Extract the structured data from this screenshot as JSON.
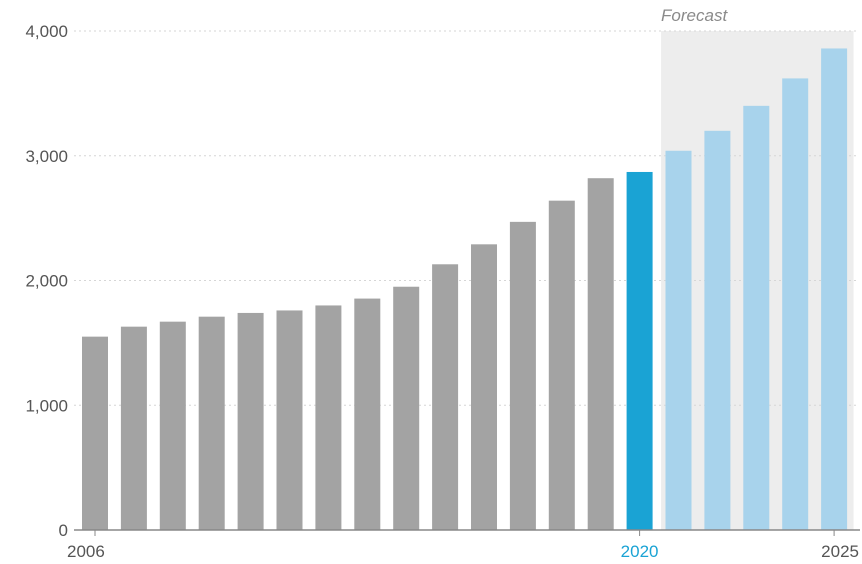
{
  "chart_data": {
    "type": "bar",
    "title": "",
    "xlabel": "",
    "ylabel": "",
    "x": [
      2006,
      2007,
      2008,
      2009,
      2010,
      2011,
      2012,
      2013,
      2014,
      2015,
      2016,
      2017,
      2018,
      2019,
      2020,
      2021,
      2022,
      2023,
      2024,
      2025
    ],
    "values": [
      1550,
      1630,
      1670,
      1710,
      1740,
      1760,
      1800,
      1855,
      1950,
      2130,
      2290,
      2470,
      2640,
      2820,
      2870,
      3040,
      3200,
      3400,
      3620,
      3860
    ],
    "ylim": [
      0,
      4000
    ],
    "yticks": [
      0,
      1000,
      2000,
      3000,
      4000
    ],
    "ytick_labels": [
      "0",
      "1,000",
      "2,000",
      "3,000",
      "4,000"
    ],
    "xtick_labels": [
      {
        "year": 2006,
        "label": "2006"
      },
      {
        "year": 2020,
        "label": "2020"
      },
      {
        "year": 2025,
        "label": "2025"
      }
    ],
    "highlight_year": 2020,
    "forecast": {
      "label": "Forecast",
      "from_year": 2021,
      "to_year": 2025
    },
    "grid": true,
    "colors": {
      "historical": "#a3a3a3",
      "highlight": "#1aa3d4",
      "forecast": "#a8d3ec",
      "forecast_region": "#ededed",
      "highlight_label": "#1aa3d4",
      "axis": "#888888",
      "grid": "#d6d6d6"
    }
  }
}
